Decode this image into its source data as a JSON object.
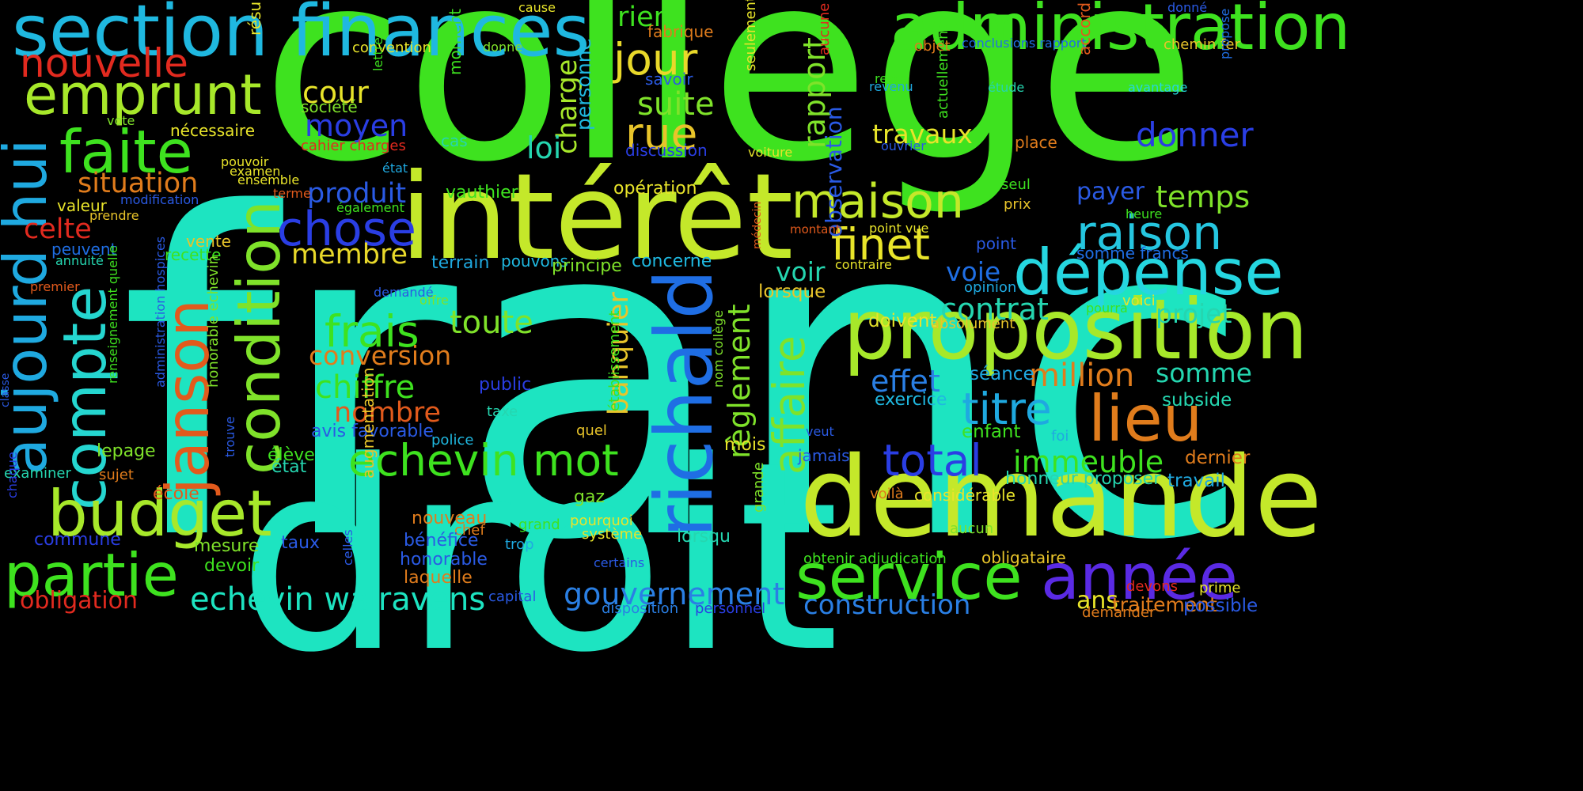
{
  "background": "#000000",
  "words": [
    {
      "text": "franc",
      "color": "#1de4c1"
    },
    {
      "text": "collège",
      "color": "#3ee21f"
    },
    {
      "text": "droit",
      "color": "#1de4c1"
    },
    {
      "text": "demande",
      "color": "#c4e82a"
    },
    {
      "text": "intérêt",
      "color": "#c4e82a"
    },
    {
      "text": "proposition",
      "color": "#a7e82a"
    },
    {
      "text": "section finances",
      "color": "#1fb8e0"
    },
    {
      "text": "administration",
      "color": "#3ee21f"
    },
    {
      "text": "aujourd hui",
      "color": "#1fa9e0"
    },
    {
      "text": "condition",
      "color": "#7fe22a"
    },
    {
      "text": "compte",
      "color": "#25d6d0"
    },
    {
      "text": "janson",
      "color": "#e25a1c"
    },
    {
      "text": "richald",
      "color": "#1f6ee4"
    },
    {
      "text": "service",
      "color": "#3ee21f"
    },
    {
      "text": "budget",
      "color": "#a7e82a"
    },
    {
      "text": "partie",
      "color": "#3ee21f"
    },
    {
      "text": "année",
      "color": "#5a2ae4"
    },
    {
      "text": "dépense",
      "color": "#25d6e0"
    },
    {
      "text": "lieu",
      "color": "#e07c1c"
    },
    {
      "text": "emprunt",
      "color": "#a7e82a"
    },
    {
      "text": "faite",
      "color": "#3ee21f"
    },
    {
      "text": "maison",
      "color": "#c4e82a"
    },
    {
      "text": "echevin mot",
      "color": "#3ee21f"
    },
    {
      "text": "affaire",
      "color": "#7fe22a"
    },
    {
      "text": "chose",
      "color": "#2a3ee4"
    },
    {
      "text": "raison",
      "color": "#25c6e0"
    },
    {
      "text": "jour",
      "color": "#e8d82a"
    },
    {
      "text": "rue",
      "color": "#e8c42a"
    },
    {
      "text": "finet",
      "color": "#e8e42a"
    },
    {
      "text": "frais",
      "color": "#3ee21f"
    },
    {
      "text": "titre",
      "color": "#1fa9e0"
    },
    {
      "text": "total",
      "color": "#2a3ee4"
    },
    {
      "text": "nouvelle",
      "color": "#e22a1f"
    },
    {
      "text": "echevin walravens",
      "color": "#1de4c1"
    },
    {
      "text": "gouvernement",
      "color": "#2a7fe4"
    },
    {
      "text": "construction",
      "color": "#2a7fe4"
    },
    {
      "text": "suite",
      "color": "#7fe22a"
    },
    {
      "text": "rapport",
      "color": "#7fe22a"
    },
    {
      "text": "observation",
      "color": "#2a5ae4"
    },
    {
      "text": "charge",
      "color": "#a7e82a"
    },
    {
      "text": "personne",
      "color": "#1fb8e0"
    },
    {
      "text": "rien",
      "color": "#3ee21f"
    },
    {
      "text": "moyen",
      "color": "#2a3ee4"
    },
    {
      "text": "cour",
      "color": "#e8e42a"
    },
    {
      "text": "loi",
      "color": "#25d6b0"
    },
    {
      "text": "situation",
      "color": "#e07c1c"
    },
    {
      "text": "celte",
      "color": "#e22a1f"
    },
    {
      "text": "membre",
      "color": "#e8d82a"
    },
    {
      "text": "produit",
      "color": "#2a5ae4"
    },
    {
      "text": "contrat",
      "color": "#25d6b0"
    },
    {
      "text": "effet",
      "color": "#2a7fe4"
    },
    {
      "text": "million",
      "color": "#e07c1c"
    },
    {
      "text": "somme",
      "color": "#25d6b0"
    },
    {
      "text": "projet",
      "color": "#25d6b0"
    },
    {
      "text": "temps",
      "color": "#7fe22a"
    },
    {
      "text": "payer",
      "color": "#2a5ae4"
    },
    {
      "text": "donner",
      "color": "#2a3ee4"
    },
    {
      "text": "travaux",
      "color": "#e8e42a"
    },
    {
      "text": "voir",
      "color": "#25d6b0"
    },
    {
      "text": "voie",
      "color": "#1f6ee4"
    },
    {
      "text": "toute",
      "color": "#7fe22a"
    },
    {
      "text": "conversion",
      "color": "#e07c1c"
    },
    {
      "text": "chiffre",
      "color": "#3ee21f"
    },
    {
      "text": "nombre",
      "color": "#e25a1c"
    },
    {
      "text": "banquier",
      "color": "#e8c42a"
    },
    {
      "text": "règlement",
      "color": "#7fe22a"
    },
    {
      "text": "immeuble",
      "color": "#3ee21f"
    },
    {
      "text": "honneur proposer",
      "color": "#25d6b0"
    },
    {
      "text": "obligation",
      "color": "#e22a1f"
    },
    {
      "text": "ans",
      "color": "#e8e42a"
    },
    {
      "text": "traitement",
      "color": "#e07c1c"
    },
    {
      "text": "possible",
      "color": "#2a5ae4"
    },
    {
      "text": "travail",
      "color": "#1fa9e0"
    },
    {
      "text": "dernier",
      "color": "#e07c1c"
    },
    {
      "text": "exercice",
      "color": "#1fb8e0"
    },
    {
      "text": "subside",
      "color": "#25d6b0"
    },
    {
      "text": "enfant",
      "color": "#3ee21f"
    },
    {
      "text": "séance",
      "color": "#1fa9e0"
    },
    {
      "text": "doivent",
      "color": "#e8e42a"
    },
    {
      "text": "lorsque",
      "color": "#e8c42a"
    },
    {
      "text": "opération",
      "color": "#e8e42a"
    },
    {
      "text": "vauthier",
      "color": "#3ee21f"
    },
    {
      "text": "terrain",
      "color": "#1fa9e0"
    },
    {
      "text": "pouvons",
      "color": "#1fb8e0"
    },
    {
      "text": "principe",
      "color": "#7fe22a"
    },
    {
      "text": "concerne",
      "color": "#1fb8e0"
    },
    {
      "text": "avis favorable",
      "color": "#2a5ae4"
    },
    {
      "text": "public",
      "color": "#2a3ee4"
    },
    {
      "text": "taxe",
      "color": "#25d6b0"
    },
    {
      "text": "police",
      "color": "#1fb8e0"
    },
    {
      "text": "quel",
      "color": "#e8c42a"
    },
    {
      "text": "mois",
      "color": "#e8e42a"
    },
    {
      "text": "élève",
      "color": "#3ee21f"
    },
    {
      "text": "état",
      "color": "#25d6b0"
    },
    {
      "text": "lepage",
      "color": "#7fe22a"
    },
    {
      "text": "école",
      "color": "#e25a1c"
    },
    {
      "text": "sujet",
      "color": "#e07c1c"
    },
    {
      "text": "examiner",
      "color": "#25d6b0"
    },
    {
      "text": "gaz",
      "color": "#7fe22a"
    },
    {
      "text": "nouveau",
      "color": "#e07c1c"
    },
    {
      "text": "chef",
      "color": "#e07c1c"
    },
    {
      "text": "grand",
      "color": "#3ee21f"
    },
    {
      "text": "pourquoi",
      "color": "#e8e42a"
    },
    {
      "text": "système",
      "color": "#e8e42a"
    },
    {
      "text": "trop",
      "color": "#1fa9e0"
    },
    {
      "text": "bénéfice",
      "color": "#2a5ae4"
    },
    {
      "text": "honorable",
      "color": "#2a5ae4"
    },
    {
      "text": "laquelle",
      "color": "#e07c1c"
    },
    {
      "text": "taux",
      "color": "#2a5ae4"
    },
    {
      "text": "commune",
      "color": "#2a3ee4"
    },
    {
      "text": "mesure",
      "color": "#7fe22a"
    },
    {
      "text": "devoir",
      "color": "#3ee21f"
    },
    {
      "text": "lorsqu",
      "color": "#25d6b0"
    },
    {
      "text": "certains",
      "color": "#2a5ae4"
    },
    {
      "text": "capital",
      "color": "#2a5ae4"
    },
    {
      "text": "disposition",
      "color": "#2a7fe4"
    },
    {
      "text": "personnel",
      "color": "#2a3ee4"
    },
    {
      "text": "obtenir adjudication",
      "color": "#3ee21f"
    },
    {
      "text": "obligataire",
      "color": "#e8c42a"
    },
    {
      "text": "aucun",
      "color": "#7fe22a"
    },
    {
      "text": "voilà",
      "color": "#e07c1c"
    },
    {
      "text": "considérable",
      "color": "#e8e42a"
    },
    {
      "text": "jamais",
      "color": "#2a5ae4"
    },
    {
      "text": "veut",
      "color": "#2a5ae4"
    },
    {
      "text": "foi",
      "color": "#1fa9e0"
    },
    {
      "text": "demander",
      "color": "#e07c1c"
    },
    {
      "text": "devons",
      "color": "#e22a1f"
    },
    {
      "text": "prime",
      "color": "#e8e42a"
    },
    {
      "text": "absolument",
      "color": "#e8c42a"
    },
    {
      "text": "pourra",
      "color": "#3ee21f"
    },
    {
      "text": "voici",
      "color": "#e8e42a"
    },
    {
      "text": "opinion",
      "color": "#1fa9e0"
    },
    {
      "text": "contraire",
      "color": "#e8e42a"
    },
    {
      "text": "somme francs",
      "color": "#1f6ee4"
    },
    {
      "text": "point",
      "color": "#2a5ae4"
    },
    {
      "text": "heure",
      "color": "#3ee21f"
    },
    {
      "text": "point vue",
      "color": "#e8e42a"
    },
    {
      "text": "montant",
      "color": "#e25a1c"
    },
    {
      "text": "prix",
      "color": "#e8c42a"
    },
    {
      "text": "seul",
      "color": "#3ee21f"
    },
    {
      "text": "place",
      "color": "#e07c1c"
    },
    {
      "text": "avantage",
      "color": "#25d6e0"
    },
    {
      "text": "étude",
      "color": "#25d6b0"
    },
    {
      "text": "conclusions rapport",
      "color": "#1f6ee4"
    },
    {
      "text": "chemin fer",
      "color": "#e8c42a"
    },
    {
      "text": "donné",
      "color": "#2a5ae4"
    },
    {
      "text": "propose",
      "color": "#1f6ee4"
    },
    {
      "text": "accord section",
      "color": "#e25a1c"
    },
    {
      "text": "actuellement",
      "color": "#3ee21f"
    },
    {
      "text": "ouvrier",
      "color": "#2a5ae4"
    },
    {
      "text": "revenu",
      "color": "#1fa9e0"
    },
    {
      "text": "reste",
      "color": "#3ee21f"
    },
    {
      "text": "seulement",
      "color": "#e8e42a"
    },
    {
      "text": "voiture",
      "color": "#e8e42a"
    },
    {
      "text": "aucune",
      "color": "#e22a1f"
    },
    {
      "text": "objet",
      "color": "#e07c1c"
    },
    {
      "text": "fabrique",
      "color": "#e07c1c"
    },
    {
      "text": "savoir",
      "color": "#2a5ae4"
    },
    {
      "text": "discussion",
      "color": "#2a3ee4"
    },
    {
      "text": "cause",
      "color": "#e8e42a"
    },
    {
      "text": "donne",
      "color": "#7fe22a"
    },
    {
      "text": "convention",
      "color": "#e8e42a"
    },
    {
      "text": "lettre",
      "color": "#3ee21f"
    },
    {
      "text": "moment",
      "color": "#3ee21f"
    },
    {
      "text": "société",
      "color": "#7fe22a"
    },
    {
      "text": "cas",
      "color": "#25d6b0"
    },
    {
      "text": "cahier charges",
      "color": "#e22a1f"
    },
    {
      "text": "nécessaire",
      "color": "#e8e42a"
    },
    {
      "text": "vote",
      "color": "#7fe22a"
    },
    {
      "text": "résultat",
      "color": "#e8e42a"
    },
    {
      "text": "pouvoir",
      "color": "#e8e42a"
    },
    {
      "text": "examen",
      "color": "#e8e42a"
    },
    {
      "text": "ensemble",
      "color": "#e8e42a"
    },
    {
      "text": "terme",
      "color": "#e25a1c"
    },
    {
      "text": "état",
      "color": "#1fa9e0"
    },
    {
      "text": "également",
      "color": "#3ee21f"
    },
    {
      "text": "modification",
      "color": "#2a5ae4"
    },
    {
      "text": "valeur",
      "color": "#e8e42a"
    },
    {
      "text": "prendre",
      "color": "#e8c42a"
    },
    {
      "text": "vente",
      "color": "#e8c42a"
    },
    {
      "text": "recette",
      "color": "#3ee21f"
    },
    {
      "text": "peuvent",
      "color": "#1f6ee4"
    },
    {
      "text": "annuité",
      "color": "#25d6b0"
    },
    {
      "text": "premier",
      "color": "#e25a1c"
    },
    {
      "text": "renseignement quelle",
      "color": "#3ee21f"
    },
    {
      "text": "administration hospices",
      "color": "#2a5ae4"
    },
    {
      "text": "honorable echevin",
      "color": "#7fe22a"
    },
    {
      "text": "trouve",
      "color": "#2a5ae4"
    },
    {
      "text": "classe",
      "color": "#2a5ae4"
    },
    {
      "text": "chaque",
      "color": "#2a3ee4"
    },
    {
      "text": "offre",
      "color": "#7fe22a"
    },
    {
      "text": "demandé",
      "color": "#2a5ae4"
    },
    {
      "text": "établissement",
      "color": "#3ee21f"
    },
    {
      "text": "nom collège",
      "color": "#7fe22a"
    },
    {
      "text": "augmentation",
      "color": "#e8c42a"
    },
    {
      "text": "celles",
      "color": "#2a5ae4"
    },
    {
      "text": "médecin",
      "color": "#e25a1c"
    },
    {
      "text": "grande",
      "color": "#7fe22a"
    }
  ]
}
